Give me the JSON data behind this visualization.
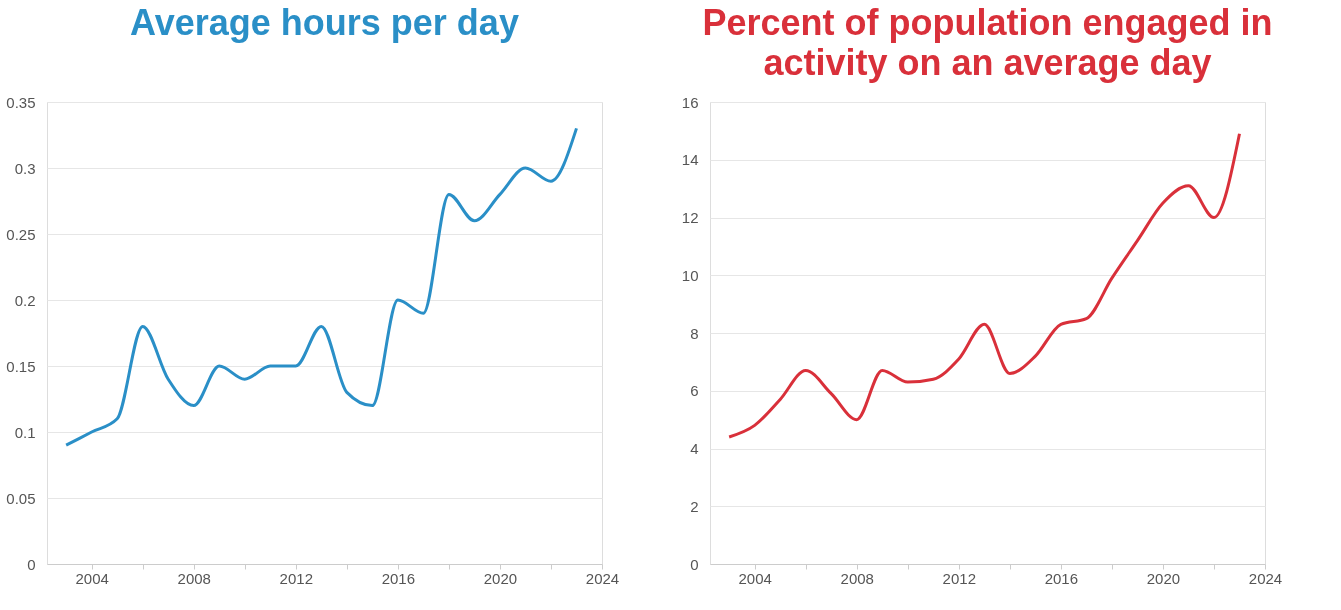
{
  "chart_data": [
    {
      "type": "line",
      "title": "Average hours per day",
      "x": [
        2003,
        2004,
        2005,
        2006,
        2007,
        2008,
        2009,
        2010,
        2011,
        2012,
        2013,
        2014,
        2015,
        2016,
        2017,
        2018,
        2019,
        2020,
        2021,
        2022,
        2023
      ],
      "series": [
        {
          "color": "#2a8fc7",
          "values": [
            0.09,
            0.1,
            0.11,
            0.18,
            0.14,
            0.12,
            0.15,
            0.14,
            0.15,
            0.15,
            0.18,
            0.13,
            0.12,
            0.2,
            0.19,
            0.28,
            0.26,
            0.28,
            0.3,
            0.29,
            0.33
          ]
        }
      ],
      "xlim": [
        2002.25,
        2024
      ],
      "xticks": [
        2004,
        {
          "value": 2006,
          "label": null
        },
        2008,
        {
          "value": 2010,
          "label": null
        },
        2012,
        {
          "value": 2014,
          "label": null
        },
        2016,
        {
          "value": 2018,
          "label": null
        },
        2020,
        {
          "value": 2022,
          "label": null
        },
        2024
      ],
      "ylim": [
        0,
        0.35
      ],
      "yticks": [
        0,
        0.05,
        0.1,
        0.15,
        0.2,
        0.25,
        0.3,
        0.35
      ],
      "grid": "y",
      "line_style": "solid",
      "marker": "none"
    },
    {
      "type": "line",
      "title": "Percent of population engaged in activity on an average day",
      "x": [
        2003,
        2004,
        2005,
        2006,
        2007,
        2008,
        2009,
        2010,
        2011,
        2012,
        2013,
        2014,
        2015,
        2016,
        2017,
        2018,
        2019,
        2020,
        2021,
        2022,
        2023
      ],
      "series": [
        {
          "color": "#d9303a",
          "values": [
            4.4,
            4.8,
            5.7,
            6.7,
            5.9,
            5.0,
            6.7,
            6.3,
            6.4,
            7.1,
            8.3,
            6.6,
            7.2,
            8.3,
            8.5,
            9.9,
            11.2,
            12.5,
            13.1,
            12.0,
            14.9
          ]
        }
      ],
      "xlim": [
        2002.25,
        2024
      ],
      "xticks": [
        2004,
        {
          "value": 2006,
          "label": null
        },
        2008,
        {
          "value": 2010,
          "label": null
        },
        2012,
        {
          "value": 2014,
          "label": null
        },
        2016,
        {
          "value": 2018,
          "label": null
        },
        2020,
        {
          "value": 2022,
          "label": null
        },
        2024
      ],
      "ylim": [
        0,
        16
      ],
      "yticks": [
        0,
        2,
        4,
        6,
        8,
        10,
        12,
        14,
        16
      ],
      "grid": "y",
      "line_style": "solid",
      "marker": "none"
    }
  ]
}
